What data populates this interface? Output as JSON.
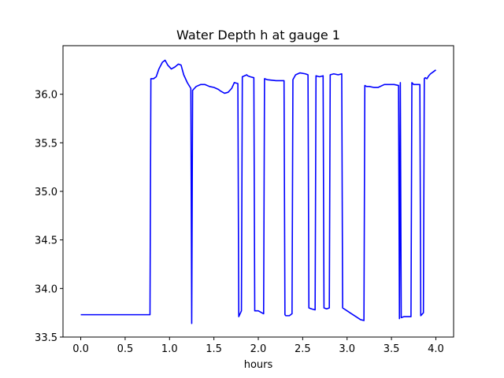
{
  "chart_data": {
    "type": "line",
    "title": "Water Depth h at gauge 1",
    "xlabel": "hours",
    "ylabel": "",
    "xlim": [
      -0.2,
      4.2
    ],
    "ylim": [
      33.5,
      36.5
    ],
    "xticks": [
      0.0,
      0.5,
      1.0,
      1.5,
      2.0,
      2.5,
      3.0,
      3.5,
      4.0
    ],
    "xtick_labels": [
      "0.0",
      "0.5",
      "1.0",
      "1.5",
      "2.0",
      "2.5",
      "3.0",
      "3.5",
      "4.0"
    ],
    "yticks": [
      33.5,
      34.0,
      34.5,
      35.0,
      35.5,
      36.0
    ],
    "ytick_labels": [
      "33.5",
      "34.0",
      "34.5",
      "35.0",
      "35.5",
      "36.0"
    ],
    "grid": false,
    "legend": "none",
    "series": [
      {
        "color": "#0000ff",
        "x": [
          0.0,
          0.78,
          0.79,
          0.82,
          0.85,
          0.88,
          0.92,
          0.95,
          0.98,
          1.02,
          1.06,
          1.1,
          1.13,
          1.16,
          1.2,
          1.24,
          1.25,
          1.26,
          1.27,
          1.3,
          1.35,
          1.4,
          1.45,
          1.5,
          1.55,
          1.58,
          1.62,
          1.66,
          1.7,
          1.73,
          1.77,
          1.78,
          1.8,
          1.81,
          1.82,
          1.87,
          1.88,
          1.91,
          1.95,
          1.96,
          2.0,
          2.06,
          2.07,
          2.1,
          2.2,
          2.29,
          2.3,
          2.31,
          2.35,
          2.38,
          2.39,
          2.42,
          2.47,
          2.53,
          2.56,
          2.57,
          2.6,
          2.64,
          2.65,
          2.69,
          2.73,
          2.74,
          2.77,
          2.8,
          2.81,
          2.85,
          2.9,
          2.94,
          2.95,
          3.0,
          3.05,
          3.1,
          3.15,
          3.19,
          3.2,
          3.22,
          3.25,
          3.3,
          3.35,
          3.42,
          3.48,
          3.53,
          3.58,
          3.59,
          3.6,
          3.61,
          3.64,
          3.68,
          3.72,
          3.73,
          3.75,
          3.78,
          3.82,
          3.83,
          3.86,
          3.87,
          3.88,
          3.9,
          3.92,
          3.94,
          3.97,
          4.0
        ],
        "y": [
          33.73,
          33.73,
          36.16,
          36.16,
          36.18,
          36.26,
          36.33,
          36.35,
          36.3,
          36.26,
          36.28,
          36.31,
          36.3,
          36.2,
          36.12,
          36.06,
          33.64,
          36.04,
          36.05,
          36.08,
          36.1,
          36.1,
          36.08,
          36.07,
          36.05,
          36.03,
          36.01,
          36.02,
          36.06,
          36.12,
          36.11,
          33.71,
          33.75,
          33.77,
          36.18,
          36.2,
          36.19,
          36.18,
          36.17,
          33.77,
          33.77,
          33.74,
          36.16,
          36.15,
          36.14,
          36.14,
          33.73,
          33.72,
          33.72,
          33.74,
          36.15,
          36.2,
          36.22,
          36.21,
          36.2,
          33.8,
          33.79,
          33.78,
          36.19,
          36.18,
          36.19,
          33.8,
          33.79,
          33.8,
          36.2,
          36.21,
          36.2,
          36.21,
          33.8,
          33.77,
          33.74,
          33.71,
          33.68,
          33.67,
          36.09,
          36.08,
          36.08,
          36.07,
          36.07,
          36.1,
          36.1,
          36.1,
          36.09,
          33.69,
          36.12,
          33.7,
          33.71,
          33.71,
          33.71,
          36.12,
          36.1,
          36.1,
          36.1,
          33.72,
          33.75,
          36.16,
          36.17,
          36.16,
          36.19,
          36.21,
          36.23,
          36.25
        ]
      }
    ]
  }
}
